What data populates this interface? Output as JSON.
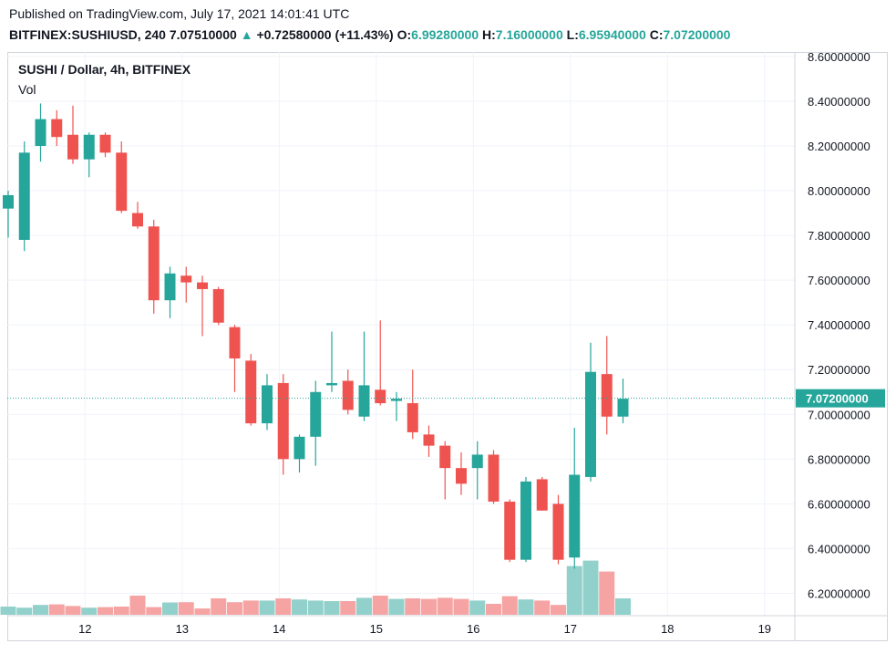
{
  "header": {
    "published": "Published on TradingView.com, July 17, 2021 14:01:41 UTC",
    "symbol": "BITFINEX:SUSHIUSD, 240",
    "price": "7.07510000",
    "up_arrow": "▲",
    "change": "+0.72580000 (+11.43%)",
    "o_label": "O:",
    "o_value": "6.99280000",
    "h_label": "H:",
    "h_value": "7.16000000",
    "l_label": "L:",
    "l_value": "6.95940000",
    "c_label": "C:",
    "c_value": "7.07200000"
  },
  "legend": {
    "title": "SUSHI / Dollar, 4h, BITFINEX",
    "vol": "Vol"
  },
  "colors": {
    "up": "#26a69a",
    "down": "#ef5350",
    "up_vol": "#92d1cb",
    "down_vol": "#f5a4a3",
    "grid": "#f0f3fa"
  },
  "chart_data": {
    "type": "candlestick",
    "title": "SUSHI / Dollar, 4h, BITFINEX",
    "y_axis": {
      "ticks": [
        "8.60000000",
        "8.40000000",
        "8.20000000",
        "8.00000000",
        "7.80000000",
        "7.60000000",
        "7.40000000",
        "7.20000000",
        "7.00000000",
        "6.80000000",
        "6.60000000",
        "6.40000000",
        "6.20000000"
      ],
      "min": 6.1,
      "max": 8.62
    },
    "x_axis": {
      "ticks": [
        {
          "label": "12",
          "index": 4.75
        },
        {
          "label": "13",
          "index": 10.75
        },
        {
          "label": "14",
          "index": 16.75
        },
        {
          "label": "15",
          "index": 22.75
        },
        {
          "label": "16",
          "index": 28.75
        },
        {
          "label": "17",
          "index": 34.75
        },
        {
          "label": "18",
          "index": 40.75
        },
        {
          "label": "19",
          "index": 46.75
        }
      ]
    },
    "last_price": {
      "value": 7.072,
      "label": "7.07200000"
    },
    "candles": [
      {
        "o": 7.92,
        "h": 8.0,
        "l": 7.79,
        "c": 7.98,
        "v": 0.3
      },
      {
        "o": 7.78,
        "h": 8.22,
        "l": 7.73,
        "c": 8.17,
        "v": 0.26
      },
      {
        "o": 8.2,
        "h": 8.39,
        "l": 8.13,
        "c": 8.32,
        "v": 0.36
      },
      {
        "o": 8.32,
        "h": 8.36,
        "l": 8.2,
        "c": 8.24,
        "v": 0.38
      },
      {
        "o": 8.25,
        "h": 8.38,
        "l": 8.12,
        "c": 8.14,
        "v": 0.32
      },
      {
        "o": 8.14,
        "h": 8.26,
        "l": 8.06,
        "c": 8.25,
        "v": 0.26
      },
      {
        "o": 8.25,
        "h": 8.26,
        "l": 8.15,
        "c": 8.17,
        "v": 0.28
      },
      {
        "o": 8.17,
        "h": 8.22,
        "l": 7.9,
        "c": 7.91,
        "v": 0.3
      },
      {
        "o": 7.9,
        "h": 7.95,
        "l": 7.83,
        "c": 7.84,
        "v": 0.7
      },
      {
        "o": 7.84,
        "h": 7.87,
        "l": 7.45,
        "c": 7.51,
        "v": 0.28
      },
      {
        "o": 7.51,
        "h": 7.66,
        "l": 7.43,
        "c": 7.63,
        "v": 0.45
      },
      {
        "o": 7.62,
        "h": 7.66,
        "l": 7.5,
        "c": 7.59,
        "v": 0.46
      },
      {
        "o": 7.59,
        "h": 7.62,
        "l": 7.35,
        "c": 7.56,
        "v": 0.23
      },
      {
        "o": 7.56,
        "h": 7.57,
        "l": 7.4,
        "c": 7.41,
        "v": 0.6
      },
      {
        "o": 7.39,
        "h": 7.4,
        "l": 7.1,
        "c": 7.25,
        "v": 0.46
      },
      {
        "o": 7.24,
        "h": 7.27,
        "l": 6.95,
        "c": 6.96,
        "v": 0.52
      },
      {
        "o": 6.96,
        "h": 7.18,
        "l": 6.93,
        "c": 7.13,
        "v": 0.52
      },
      {
        "o": 7.14,
        "h": 7.18,
        "l": 6.73,
        "c": 6.8,
        "v": 0.6
      },
      {
        "o": 6.8,
        "h": 6.91,
        "l": 6.74,
        "c": 6.9,
        "v": 0.56
      },
      {
        "o": 6.9,
        "h": 7.15,
        "l": 6.77,
        "c": 7.1,
        "v": 0.52
      },
      {
        "o": 7.13,
        "h": 7.37,
        "l": 7.1,
        "c": 7.14,
        "v": 0.5
      },
      {
        "o": 7.15,
        "h": 7.2,
        "l": 7.0,
        "c": 7.02,
        "v": 0.5
      },
      {
        "o": 6.99,
        "h": 7.37,
        "l": 6.97,
        "c": 7.13,
        "v": 0.62
      },
      {
        "o": 7.11,
        "h": 7.42,
        "l": 7.04,
        "c": 7.05,
        "v": 0.7
      },
      {
        "o": 7.06,
        "h": 7.1,
        "l": 6.97,
        "c": 7.07,
        "v": 0.58
      },
      {
        "o": 7.05,
        "h": 7.2,
        "l": 6.89,
        "c": 6.92,
        "v": 0.6
      },
      {
        "o": 6.91,
        "h": 6.95,
        "l": 6.81,
        "c": 6.86,
        "v": 0.58
      },
      {
        "o": 6.86,
        "h": 6.88,
        "l": 6.62,
        "c": 6.76,
        "v": 0.62
      },
      {
        "o": 6.76,
        "h": 6.83,
        "l": 6.64,
        "c": 6.69,
        "v": 0.58
      },
      {
        "o": 6.76,
        "h": 6.88,
        "l": 6.62,
        "c": 6.82,
        "v": 0.52
      },
      {
        "o": 6.82,
        "h": 6.84,
        "l": 6.6,
        "c": 6.61,
        "v": 0.4
      },
      {
        "o": 6.61,
        "h": 6.62,
        "l": 6.34,
        "c": 6.35,
        "v": 0.68
      },
      {
        "o": 6.35,
        "h": 6.72,
        "l": 6.34,
        "c": 6.7,
        "v": 0.56
      },
      {
        "o": 6.71,
        "h": 6.72,
        "l": 6.57,
        "c": 6.57,
        "v": 0.52
      },
      {
        "o": 6.6,
        "h": 6.64,
        "l": 6.33,
        "c": 6.35,
        "v": 0.36
      },
      {
        "o": 6.36,
        "h": 6.94,
        "l": 6.31,
        "c": 6.73,
        "v": 1.78
      },
      {
        "o": 6.72,
        "h": 7.32,
        "l": 6.7,
        "c": 7.19,
        "v": 1.98
      },
      {
        "o": 7.18,
        "h": 7.35,
        "l": 6.91,
        "c": 6.99,
        "v": 1.58
      },
      {
        "o": 6.99,
        "h": 7.16,
        "l": 6.96,
        "c": 7.07,
        "v": 0.6
      }
    ]
  }
}
